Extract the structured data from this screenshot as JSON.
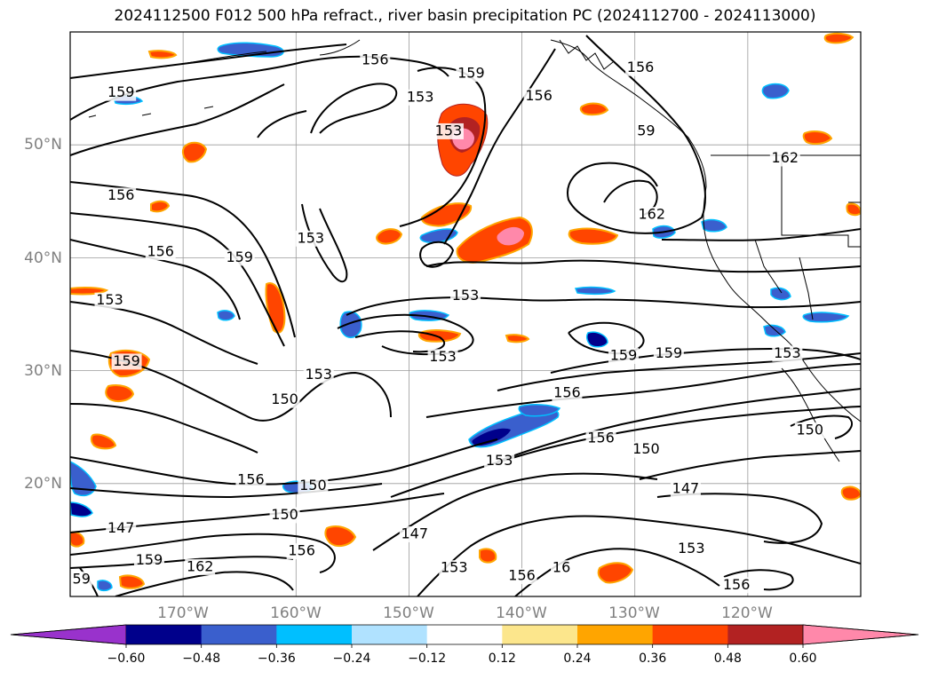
{
  "title": "2024112500 F012 500 hPa refract., river basin precipitation PC (2024112700 - 2024113000)",
  "map": {
    "projection": "PlateCarree",
    "lon_range": [
      -180,
      -110
    ],
    "lat_range": [
      10,
      60
    ],
    "lat_ticks": [
      "50°N",
      "40°N",
      "30°N",
      "20°N"
    ],
    "lon_ticks": [
      "170°W",
      "160°W",
      "150°W",
      "140°W",
      "130°W",
      "120°W"
    ],
    "grid": true,
    "contour_levels_shown": [
      "147",
      "150",
      "153",
      "156",
      "159",
      "162"
    ],
    "contour_labels": [
      {
        "text": "156",
        "lon": -153,
        "lat": 57.5
      },
      {
        "text": "159",
        "lon": -175.5,
        "lat": 54.6
      },
      {
        "text": "159",
        "lon": -144.5,
        "lat": 56.3
      },
      {
        "text": "153",
        "lon": -149,
        "lat": 54.2
      },
      {
        "text": "153",
        "lon": -146.5,
        "lat": 51.2
      },
      {
        "text": "156",
        "lon": -138.5,
        "lat": 54.3
      },
      {
        "text": "156",
        "lon": -129.5,
        "lat": 56.8
      },
      {
        "text": "59",
        "lon": -129,
        "lat": 51.2
      },
      {
        "text": "156",
        "lon": -175.5,
        "lat": 45.5
      },
      {
        "text": "153",
        "lon": -158.7,
        "lat": 41.7
      },
      {
        "text": "159",
        "lon": -165,
        "lat": 40.0
      },
      {
        "text": "156",
        "lon": -172,
        "lat": 40.5
      },
      {
        "text": "162",
        "lon": -128.5,
        "lat": 43.8
      },
      {
        "text": "162",
        "lon": -116.7,
        "lat": 48.8
      },
      {
        "text": "153",
        "lon": -176.5,
        "lat": 36.2
      },
      {
        "text": "153",
        "lon": -145,
        "lat": 36.6
      },
      {
        "text": "159",
        "lon": -175,
        "lat": 30.8
      },
      {
        "text": "153",
        "lon": -158,
        "lat": 29.6
      },
      {
        "text": "153",
        "lon": -147,
        "lat": 31.2
      },
      {
        "text": "159",
        "lon": -131,
        "lat": 31.3
      },
      {
        "text": "159",
        "lon": -127,
        "lat": 31.5
      },
      {
        "text": "156",
        "lon": -136,
        "lat": 28.0
      },
      {
        "text": "153",
        "lon": -116.5,
        "lat": 31.5
      },
      {
        "text": "150",
        "lon": -161,
        "lat": 27.4
      },
      {
        "text": "156",
        "lon": -133,
        "lat": 24.0
      },
      {
        "text": "150",
        "lon": -129,
        "lat": 23.0
      },
      {
        "text": "150",
        "lon": -114.5,
        "lat": 24.7
      },
      {
        "text": "153",
        "lon": -142,
        "lat": 22.0
      },
      {
        "text": "156",
        "lon": -164,
        "lat": 20.3
      },
      {
        "text": "150",
        "lon": -158.5,
        "lat": 19.8
      },
      {
        "text": "147",
        "lon": -125.5,
        "lat": 19.5
      },
      {
        "text": "150",
        "lon": -161,
        "lat": 17.2
      },
      {
        "text": "147",
        "lon": -175.5,
        "lat": 16.0
      },
      {
        "text": "147",
        "lon": -149.5,
        "lat": 15.5
      },
      {
        "text": "156",
        "lon": -159.5,
        "lat": 14.0
      },
      {
        "text": "159",
        "lon": -173,
        "lat": 13.2
      },
      {
        "text": "162",
        "lon": -168.5,
        "lat": 12.6
      },
      {
        "text": "153",
        "lon": -146,
        "lat": 12.5
      },
      {
        "text": "156",
        "lon": -140,
        "lat": 11.8
      },
      {
        "text": "16",
        "lon": -136.5,
        "lat": 12.5
      },
      {
        "text": "153",
        "lon": -125,
        "lat": 14.2
      },
      {
        "text": "156",
        "lon": -121,
        "lat": 11.0
      },
      {
        "text": "59",
        "lon": -179,
        "lat": 11.5
      }
    ]
  },
  "colorbar": {
    "extend": "both",
    "levels": [
      "-0.60",
      "-0.48",
      "-0.36",
      "-0.24",
      "-0.12",
      "0.12",
      "0.24",
      "0.36",
      "0.48",
      "0.60"
    ],
    "colors": [
      "#9932cc",
      "#00008b",
      "#3a5fcd",
      "#00bfff",
      "#b0e2ff",
      "#ffffff",
      "#fce68c",
      "#ffa500",
      "#ff4500",
      "#b22222",
      "#ff88aa"
    ]
  }
}
